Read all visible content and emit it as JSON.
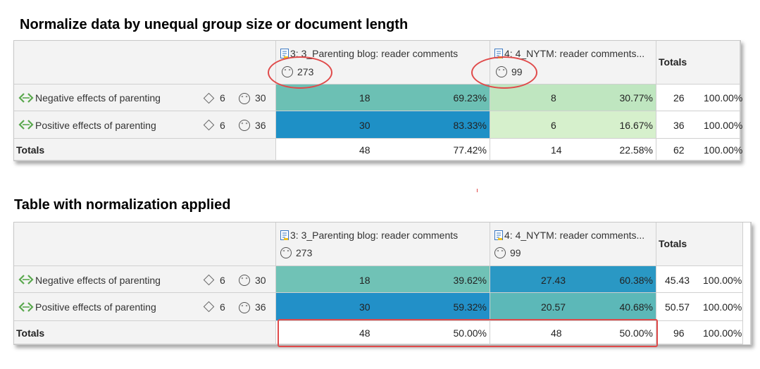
{
  "sections": [
    {
      "title": "Normalize data by unequal group size or document length",
      "columns": [
        {
          "label": "3: 3_Parenting blog: reader comments",
          "count": "273"
        },
        {
          "label": "4: 4_NYTM: reader comments...",
          "count": "99"
        }
      ],
      "totals_header": "Totals",
      "rows": [
        {
          "label": "Negative effects of parenting",
          "groups": "6",
          "quotes": "30",
          "c1": {
            "value": "18",
            "pct": "69.23%",
            "color": "#6cc0b4"
          },
          "c2": {
            "value": "8",
            "pct": "30.77%",
            "color": "#bfe6c0"
          },
          "total": "26",
          "total_pct": "100.00%"
        },
        {
          "label": "Positive effects of parenting",
          "groups": "6",
          "quotes": "36",
          "c1": {
            "value": "30",
            "pct": "83.33%",
            "color": "#1e90c6"
          },
          "c2": {
            "value": "6",
            "pct": "16.67%",
            "color": "#d6f0cc"
          },
          "total": "36",
          "total_pct": "100.00%"
        }
      ],
      "totals_row": {
        "label": "Totals",
        "c1": "48",
        "c1_pct": "77.42%",
        "c2": "14",
        "c2_pct": "22.58%",
        "total": "62",
        "total_pct": "100.00%"
      }
    },
    {
      "title": "Table with normalization applied",
      "columns": [
        {
          "label": "3: 3_Parenting blog: reader comments",
          "count": "273"
        },
        {
          "label": "4: 4_NYTM: reader comments...",
          "count": "99"
        }
      ],
      "totals_header": "Totals",
      "rows": [
        {
          "label": "Negative effects of parenting",
          "groups": "6",
          "quotes": "30",
          "c1": {
            "value": "18",
            "pct": "39.62%",
            "color": "#70c2b6"
          },
          "c2": {
            "value": "27.43",
            "pct": "60.38%",
            "color": "#2a98c4"
          },
          "total": "45.43",
          "total_pct": "100.00%"
        },
        {
          "label": "Positive effects of parenting",
          "groups": "6",
          "quotes": "36",
          "c1": {
            "value": "30",
            "pct": "59.32%",
            "color": "#2290c8"
          },
          "c2": {
            "value": "20.57",
            "pct": "40.68%",
            "color": "#5cb8b8"
          },
          "total": "50.57",
          "total_pct": "100.00%"
        }
      ],
      "totals_row": {
        "label": "Totals",
        "c1": "48",
        "c1_pct": "50.00%",
        "c2": "48",
        "c2_pct": "50.00%",
        "total": "96",
        "total_pct": "100.00%"
      }
    }
  ],
  "colors": {
    "highlight": "#e04a4a",
    "header_bg": "#f3f3f3",
    "code_icon": "#5aa84e",
    "doc_icon": "#3a78c2"
  }
}
